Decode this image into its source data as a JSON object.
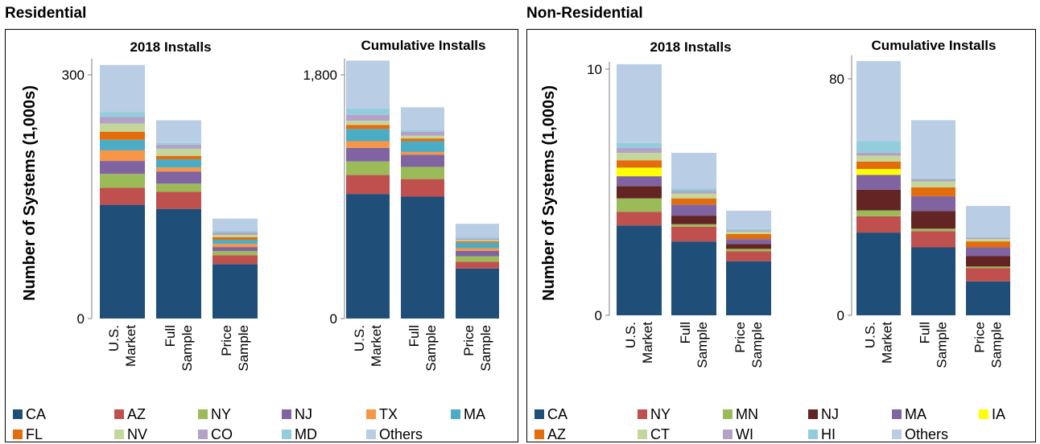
{
  "panels": [
    {
      "title": "Residential",
      "ylabel": "Number of Systems (1,000s)",
      "legend": [
        {
          "name": "CA",
          "color": "#1f4e79"
        },
        {
          "name": "AZ",
          "color": "#c0504d"
        },
        {
          "name": "NY",
          "color": "#9bbb59"
        },
        {
          "name": "NJ",
          "color": "#8064a2"
        },
        {
          "name": "TX",
          "color": "#f79646"
        },
        {
          "name": "MA",
          "color": "#4bacc6"
        },
        {
          "name": "FL",
          "color": "#e46c0a"
        },
        {
          "name": "NV",
          "color": "#c4d79b"
        },
        {
          "name": "CO",
          "color": "#b3a2c7"
        },
        {
          "name": "MD",
          "color": "#93cddd"
        },
        {
          "name": "Others",
          "color": "#b9cde5"
        }
      ]
    },
    {
      "title": "Non-Residential",
      "ylabel": "Number of Systems (1,000s)",
      "legend": [
        {
          "name": "CA",
          "color": "#1f4e79"
        },
        {
          "name": "NY",
          "color": "#c0504d"
        },
        {
          "name": "MN",
          "color": "#9bbb59"
        },
        {
          "name": "NJ",
          "color": "#632523"
        },
        {
          "name": "MA",
          "color": "#8064a2"
        },
        {
          "name": "IA",
          "color": "#ffff00"
        },
        {
          "name": "AZ",
          "color": "#e46c0a"
        },
        {
          "name": "CT",
          "color": "#c4d79b"
        },
        {
          "name": "WI",
          "color": "#b3a2c7"
        },
        {
          "name": "HI",
          "color": "#93cddd"
        },
        {
          "name": "Others",
          "color": "#b9cde5"
        }
      ]
    }
  ],
  "chart_data": [
    {
      "type": "bar",
      "stacked": true,
      "panel": "Residential",
      "title": "2018 Installs",
      "categories": [
        "U.S. Market",
        "Full Sample",
        "Price Sample"
      ],
      "yticks": [
        "0",
        "300"
      ],
      "ylim": [
        0,
        320
      ],
      "series": [
        {
          "name": "CA",
          "values": [
            140,
            135,
            67
          ]
        },
        {
          "name": "AZ",
          "values": [
            21,
            21,
            11
          ]
        },
        {
          "name": "NY",
          "values": [
            17,
            10,
            5
          ]
        },
        {
          "name": "NJ",
          "values": [
            16,
            15,
            5
          ]
        },
        {
          "name": "TX",
          "values": [
            13,
            5,
            4
          ]
        },
        {
          "name": "MA",
          "values": [
            13,
            10,
            5
          ]
        },
        {
          "name": "FL",
          "values": [
            10,
            4,
            3
          ]
        },
        {
          "name": "NV",
          "values": [
            10,
            9,
            3
          ]
        },
        {
          "name": "CO",
          "values": [
            8,
            5,
            3
          ]
        },
        {
          "name": "MD",
          "values": [
            6,
            2,
            2
          ]
        },
        {
          "name": "Others",
          "values": [
            58,
            28,
            15
          ]
        }
      ]
    },
    {
      "type": "bar",
      "stacked": true,
      "panel": "Residential",
      "title": "Cumulative Installs",
      "categories": [
        "U.S. Market",
        "Full Sample",
        "Price Sample"
      ],
      "yticks": [
        "0",
        "1,800"
      ],
      "ylim": [
        0,
        1920
      ],
      "series": [
        {
          "name": "CA",
          "values": [
            920,
            900,
            370
          ]
        },
        {
          "name": "AZ",
          "values": [
            140,
            130,
            50
          ]
        },
        {
          "name": "NY",
          "values": [
            100,
            90,
            40
          ]
        },
        {
          "name": "NJ",
          "values": [
            100,
            90,
            40
          ]
        },
        {
          "name": "TX",
          "values": [
            50,
            20,
            20
          ]
        },
        {
          "name": "MA",
          "values": [
            90,
            80,
            40
          ]
        },
        {
          "name": "FL",
          "values": [
            30,
            20,
            10
          ]
        },
        {
          "name": "NV",
          "values": [
            30,
            20,
            10
          ]
        },
        {
          "name": "CO",
          "values": [
            45,
            30,
            10
          ]
        },
        {
          "name": "MD",
          "values": [
            45,
            10,
            10
          ]
        },
        {
          "name": "Others",
          "values": [
            355,
            170,
            100
          ]
        }
      ]
    },
    {
      "type": "bar",
      "stacked": true,
      "panel": "Non-Residential",
      "title": "2018 Installs",
      "categories": [
        "U.S. Market",
        "Full Sample",
        "Price Sample"
      ],
      "yticks": [
        "0",
        "10"
      ],
      "ylim": [
        0,
        10.3
      ],
      "series": [
        {
          "name": "CA",
          "values": [
            3.65,
            3.0,
            2.2
          ]
        },
        {
          "name": "NY",
          "values": [
            0.55,
            0.6,
            0.4
          ]
        },
        {
          "name": "MN",
          "values": [
            0.55,
            0.1,
            0.1
          ]
        },
        {
          "name": "NJ",
          "values": [
            0.5,
            0.35,
            0.2
          ]
        },
        {
          "name": "MA",
          "values": [
            0.4,
            0.45,
            0.2
          ]
        },
        {
          "name": "IA",
          "values": [
            0.35,
            0.0,
            0.0
          ]
        },
        {
          "name": "AZ",
          "values": [
            0.3,
            0.25,
            0.2
          ]
        },
        {
          "name": "CT",
          "values": [
            0.3,
            0.2,
            0.1
          ]
        },
        {
          "name": "WI",
          "values": [
            0.2,
            0.1,
            0.05
          ]
        },
        {
          "name": "HI",
          "values": [
            0.2,
            0.1,
            0.05
          ]
        },
        {
          "name": "Others",
          "values": [
            3.2,
            1.45,
            0.75
          ]
        }
      ]
    },
    {
      "type": "bar",
      "stacked": true,
      "panel": "Non-Residential",
      "title": "Cumulative Installs",
      "categories": [
        "U.S. Market",
        "Full Sample",
        "Price Sample"
      ],
      "yticks": [
        "0",
        "80"
      ],
      "ylim": [
        0,
        88
      ],
      "series": [
        {
          "name": "CA",
          "values": [
            28,
            23,
            11.5
          ]
        },
        {
          "name": "NY",
          "values": [
            5.5,
            5.5,
            4.5
          ]
        },
        {
          "name": "MN",
          "values": [
            2,
            0.8,
            0.5
          ]
        },
        {
          "name": "NJ",
          "values": [
            7,
            6,
            3.5
          ]
        },
        {
          "name": "MA",
          "values": [
            5,
            5,
            3
          ]
        },
        {
          "name": "IA",
          "values": [
            2,
            0,
            0
          ]
        },
        {
          "name": "AZ",
          "values": [
            2.5,
            3,
            2
          ]
        },
        {
          "name": "CT",
          "values": [
            2,
            2,
            0.8
          ]
        },
        {
          "name": "WI",
          "values": [
            1,
            0.7,
            0.5
          ]
        },
        {
          "name": "HI",
          "values": [
            4,
            0.3,
            0.2
          ]
        },
        {
          "name": "Others",
          "values": [
            27,
            19.7,
            10.5
          ]
        }
      ]
    }
  ]
}
